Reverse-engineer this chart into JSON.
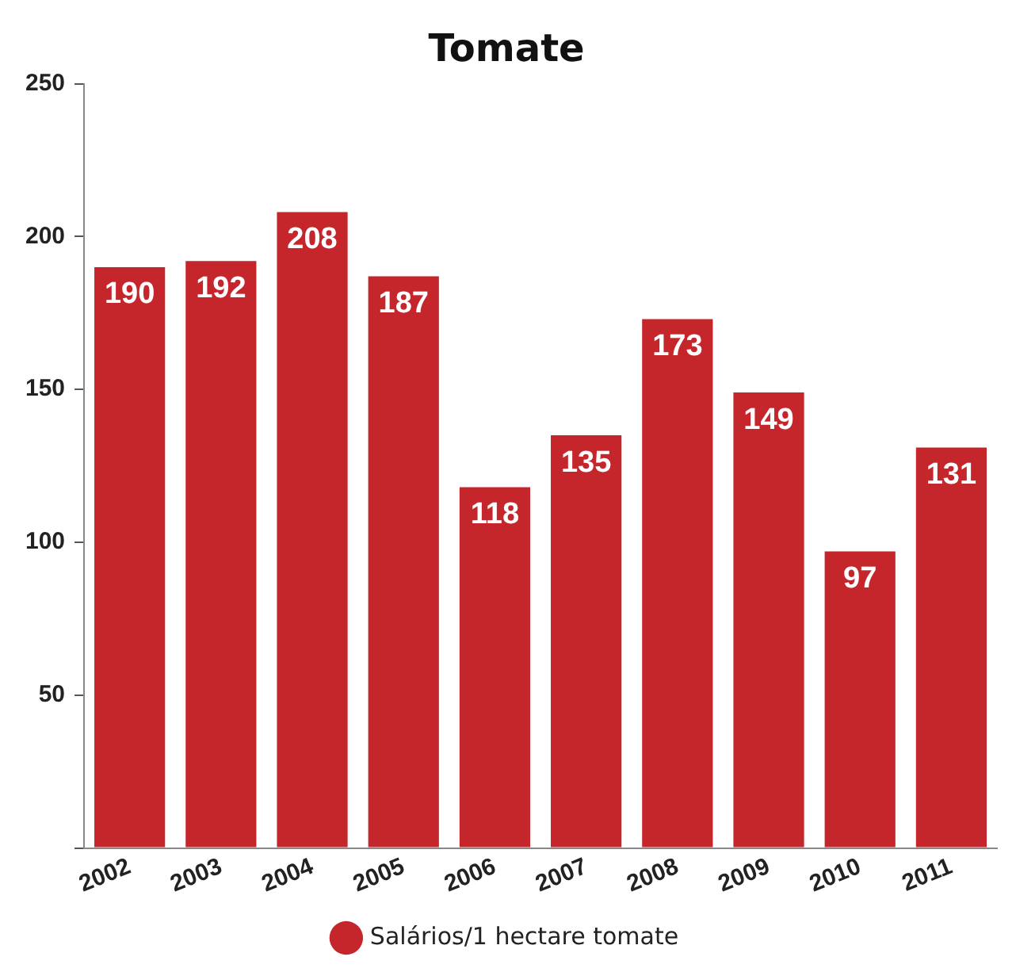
{
  "chart_data": {
    "type": "bar",
    "title": "Tomate",
    "categories": [
      "2002",
      "2003",
      "2004",
      "2005",
      "2006",
      "2007",
      "2008",
      "2009",
      "2010",
      "2011"
    ],
    "series": [
      {
        "name": "Salários/1 hectare tomate",
        "color": "#c4262b",
        "values": [
          190,
          192,
          208,
          187,
          118,
          135,
          173,
          149,
          97,
          131
        ]
      }
    ],
    "ylim": [
      0,
      250
    ],
    "yticks": [
      {
        "value": 0,
        "label": null
      },
      50,
      100,
      150,
      200,
      250
    ],
    "grid": false,
    "legend": "bottom",
    "data_labels": true
  }
}
